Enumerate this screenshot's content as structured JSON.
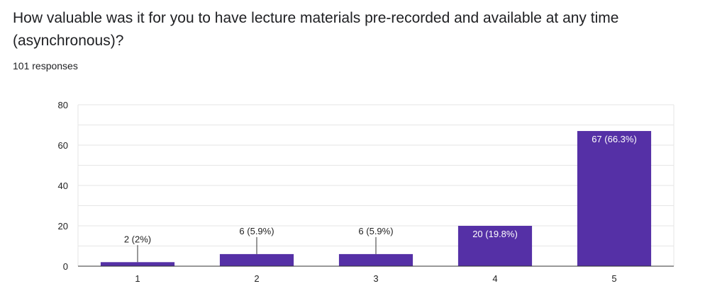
{
  "question": {
    "text": "How valuable was it for you to have lecture materials pre-recorded and available at any time (asynchronous)?"
  },
  "responses": {
    "text": "101 responses"
  },
  "colors": {
    "bar": "#5530a6",
    "grid": "#e6e6e6",
    "axis": "#333333",
    "label_inside": "#ffffff",
    "label_outside": "#222222"
  },
  "chart_data": {
    "type": "bar",
    "categories": [
      "1",
      "2",
      "3",
      "4",
      "5"
    ],
    "values": [
      2,
      6,
      6,
      20,
      67
    ],
    "data_labels": [
      "2 (2%)",
      "6 (5.9%)",
      "6 (5.9%)",
      "20 (19.8%)",
      "67 (66.3%)"
    ],
    "ylim": [
      0,
      80
    ],
    "yticks": [
      0,
      20,
      40,
      60,
      80
    ],
    "grid": true,
    "legend": "none"
  }
}
